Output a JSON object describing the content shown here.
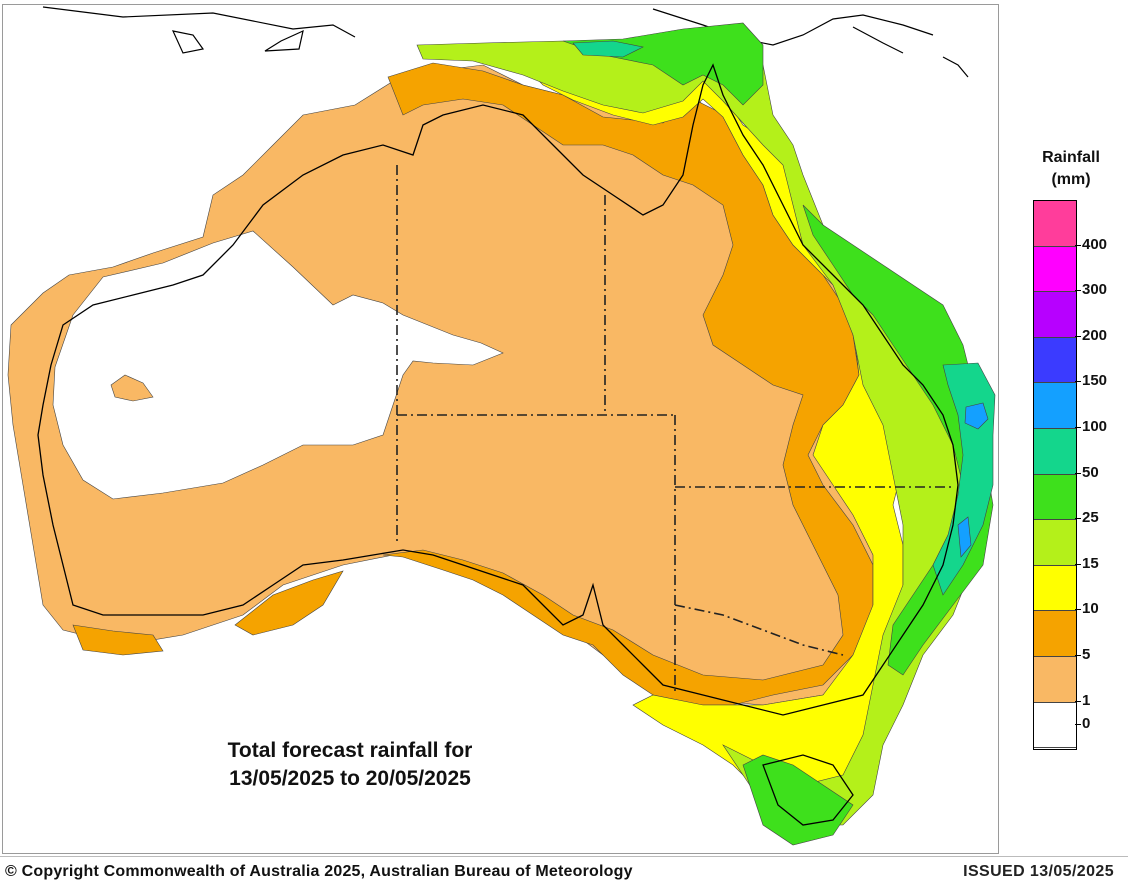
{
  "map": {
    "title_line1": "Total forecast rainfall for",
    "title_line2": "13/05/2025 to 20/05/2025"
  },
  "legend": {
    "title_line1": "Rainfall",
    "title_line2": "(mm)",
    "bins": [
      {
        "label": "400",
        "color": "#ff3d9b"
      },
      {
        "label": "300",
        "color": "#ff00ff"
      },
      {
        "label": "200",
        "color": "#b700ff"
      },
      {
        "label": "150",
        "color": "#3b3bff"
      },
      {
        "label": "100",
        "color": "#14a0ff"
      },
      {
        "label": "50",
        "color": "#14d68c"
      },
      {
        "label": "25",
        "color": "#3ee01c"
      },
      {
        "label": "15",
        "color": "#b4f01a"
      },
      {
        "label": "10",
        "color": "#ffff00"
      },
      {
        "label": "5",
        "color": "#f5a300"
      },
      {
        "label": "1",
        "color": "#f9b864"
      },
      {
        "label": "0",
        "color": "#ffffff"
      }
    ]
  },
  "footer": {
    "copyright": "© Copyright Commonwealth of Australia 2025, Australian Bureau of Meteorology",
    "issued": "ISSUED 13/05/2025"
  }
}
